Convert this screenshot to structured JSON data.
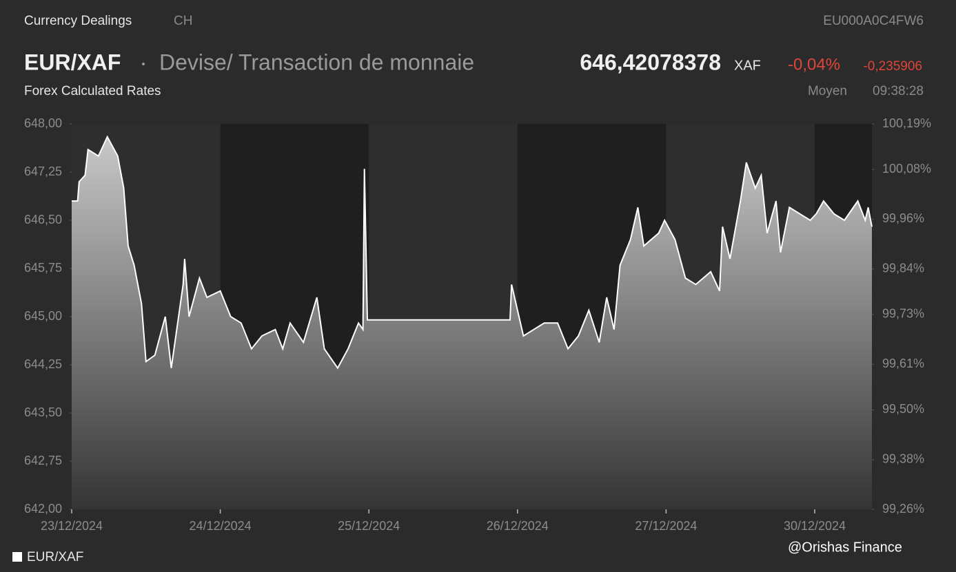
{
  "header": {
    "section": "Currency Dealings",
    "region": "CH",
    "isin": "EU000A0C4FW6",
    "symbol": "EUR/XAF",
    "description": "Devise/ Transaction de monnaie",
    "price": "646,42078378",
    "currency": "XAF",
    "change_pct": "-0,04%",
    "change": "-0,235906",
    "source": "Forex Calculated Rates",
    "price_type": "Moyen",
    "time": "09:38:28"
  },
  "watermark": "@Orishas Finance",
  "chart_data": {
    "type": "area",
    "x": [
      0,
      0.04,
      0.05,
      0.09,
      0.11,
      0.18,
      0.24,
      0.31,
      0.35,
      0.38,
      0.42,
      0.47,
      0.5,
      0.56,
      0.63,
      0.67,
      0.75,
      0.76,
      0.79,
      0.86,
      0.91,
      1.0,
      1.07,
      1.14,
      1.21,
      1.28,
      1.37,
      1.42,
      1.47,
      1.56,
      1.65,
      1.7,
      1.79,
      1.86,
      1.93,
      1.96,
      1.97,
      1.99,
      2.95,
      2.96,
      3.04,
      3.18,
      3.27,
      3.34,
      3.41,
      3.48,
      3.55,
      3.6,
      3.65,
      3.69,
      3.76,
      3.81,
      3.85,
      3.95,
      3.99,
      4.06,
      4.13,
      4.2,
      4.3,
      4.36,
      4.38,
      4.43,
      4.5,
      4.54,
      4.6,
      4.64,
      4.68,
      4.74,
      4.77,
      4.83,
      4.9,
      4.97,
      5.01,
      5.06,
      5.13,
      5.2,
      5.29,
      5.34,
      5.36,
      5.385
    ],
    "series": [
      {
        "name": "EUR/XAF",
        "color": "#ffffff",
        "values": [
          646.8,
          646.8,
          647.1,
          647.2,
          647.6,
          647.5,
          647.8,
          647.5,
          647.0,
          646.1,
          645.8,
          645.2,
          644.3,
          644.4,
          645.0,
          644.2,
          645.5,
          645.9,
          645.0,
          645.6,
          645.3,
          645.4,
          645.0,
          644.9,
          644.5,
          644.7,
          644.8,
          644.5,
          644.9,
          644.6,
          645.3,
          644.5,
          644.2,
          644.5,
          644.9,
          644.8,
          647.3,
          644.95,
          644.95,
          645.5,
          644.7,
          644.9,
          644.9,
          644.5,
          644.7,
          645.1,
          644.6,
          645.3,
          644.8,
          645.8,
          646.2,
          646.7,
          646.1,
          646.3,
          646.5,
          646.2,
          645.6,
          645.5,
          645.7,
          645.4,
          646.4,
          645.9,
          646.8,
          647.4,
          647.0,
          647.2,
          646.3,
          646.8,
          646.0,
          646.7,
          646.6,
          646.5,
          646.6,
          646.8,
          646.6,
          646.5,
          646.8,
          646.5,
          646.7,
          646.4
        ]
      }
    ],
    "xlim": [
      0,
      5.385
    ],
    "xticks": [
      {
        "value": 0,
        "label": "23/12/2024"
      },
      {
        "value": 1,
        "label": "24/12/2024"
      },
      {
        "value": 2,
        "label": "25/12/2024"
      },
      {
        "value": 3,
        "label": "26/12/2024"
      },
      {
        "value": 4,
        "label": "27/12/2024"
      },
      {
        "value": 5,
        "label": "30/12/2024"
      }
    ],
    "ylim": [
      642,
      648
    ],
    "yticks": [
      {
        "value": 648,
        "label": "648,00"
      },
      {
        "value": 647.25,
        "label": "647,25"
      },
      {
        "value": 646.5,
        "label": "646,50"
      },
      {
        "value": 645.75,
        "label": "645,75"
      },
      {
        "value": 645,
        "label": "645,00"
      },
      {
        "value": 644.25,
        "label": "644,25"
      },
      {
        "value": 643.5,
        "label": "643,50"
      },
      {
        "value": 642.75,
        "label": "642,75"
      },
      {
        "value": 642,
        "label": "642,00"
      }
    ],
    "y2lim": [
      99.26,
      100.19
    ],
    "y2ticks": [
      {
        "value": 100.19,
        "label": "100,19%"
      },
      {
        "value": 100.08,
        "label": "100,08%"
      },
      {
        "value": 99.96,
        "label": "99,96%"
      },
      {
        "value": 99.84,
        "label": "99,84%"
      },
      {
        "value": 99.73,
        "label": "99,73%"
      },
      {
        "value": 99.61,
        "label": "99,61%"
      },
      {
        "value": 99.5,
        "label": "99,50%"
      },
      {
        "value": 99.38,
        "label": "99,38%"
      },
      {
        "value": 99.26,
        "label": "99,26%"
      }
    ],
    "legend": "bottom-left"
  }
}
